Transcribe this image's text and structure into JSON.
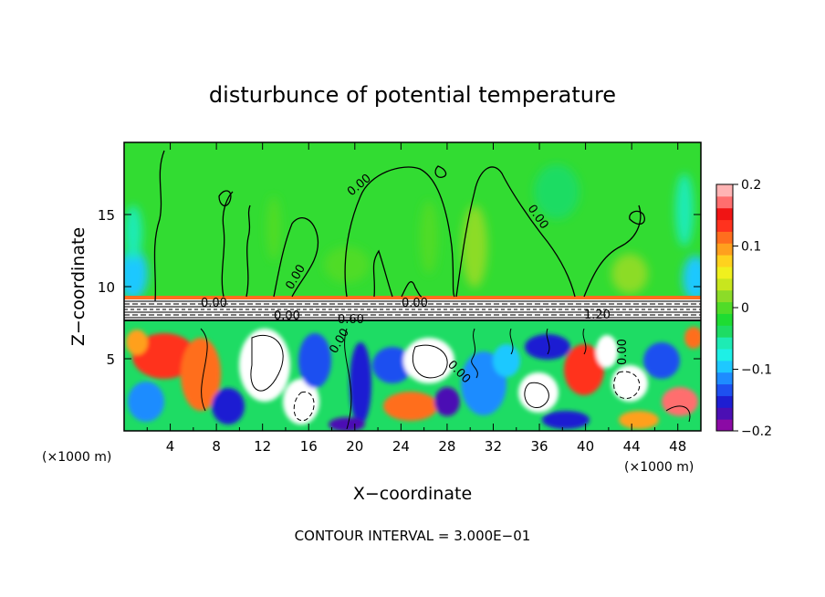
{
  "chart_data": {
    "type": "heatmap",
    "title": "disturbunce of potential temperature",
    "xlabel": "X−coordinate",
    "ylabel": "Z−coordinate",
    "x_unit_left": "(×1000 m)",
    "x_unit_right": "(×1000 m)",
    "footer": "CONTOUR INTERVAL = 3.000E−01",
    "xlim": [
      0,
      50
    ],
    "ylim": [
      0,
      20
    ],
    "x_ticks": [
      "4",
      "8",
      "12",
      "16",
      "20",
      "24",
      "28",
      "32",
      "36",
      "40",
      "44",
      "48"
    ],
    "y_ticks": [
      "5",
      "10",
      "15"
    ],
    "colorbar": {
      "range": [
        -0.2,
        0.2
      ],
      "tick_labels": [
        "0.2",
        "0.1",
        "0",
        "−0.1",
        "−0.2"
      ],
      "colors": [
        "#8B0AA5",
        "#4B0FB4",
        "#1E1ED2",
        "#1E50F0",
        "#1E8CFF",
        "#1EC8FF",
        "#1EF0E6",
        "#1EEBB4",
        "#1EDC64",
        "#1EDC32",
        "#50DC28",
        "#8CDC28",
        "#C8E61E",
        "#F0F01E",
        "#FFD21E",
        "#FFA01E",
        "#FF6E1E",
        "#FF321E",
        "#F01414",
        "#FF6E6E",
        "#FFB4B4"
      ]
    },
    "contour_labels": [
      "0.00",
      "0.00",
      "0.00",
      "0.00",
      "0.00",
      "0.60",
      "0.00",
      "1.20",
      "0.00",
      "0.00",
      "0.00"
    ],
    "grid": false,
    "legend": "colorbar-right"
  }
}
